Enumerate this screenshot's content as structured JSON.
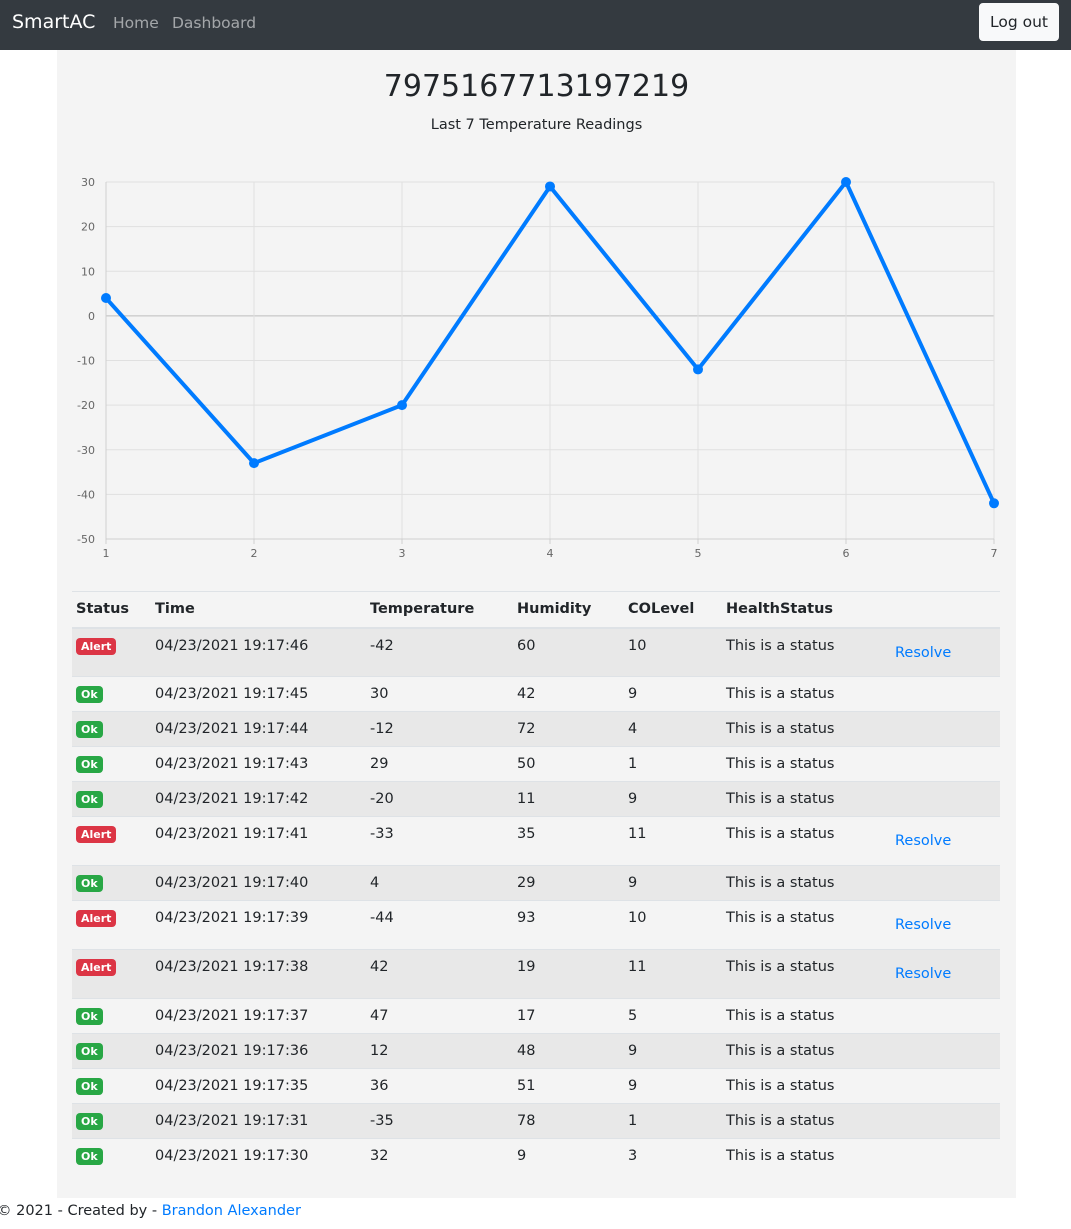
{
  "navbar": {
    "brand": "SmartAC",
    "links": [
      "Home",
      "Dashboard"
    ],
    "logout_label": "Log out"
  },
  "device": {
    "id": "7975167713197219",
    "chart_subtitle": "Last 7 Temperature Readings"
  },
  "chart_data": {
    "type": "line",
    "x": [
      1,
      2,
      3,
      4,
      5,
      6,
      7
    ],
    "series": [
      {
        "values": [
          4,
          -33,
          -20,
          29,
          -12,
          30,
          -42
        ]
      }
    ],
    "title": "",
    "xlabel": "",
    "ylabel": "",
    "ylim": [
      -50,
      30
    ],
    "yticks": [
      30,
      20,
      10,
      0,
      -10,
      -20,
      -30,
      -40,
      -50
    ],
    "grid": true,
    "legend": "none",
    "line_color": "#007bff"
  },
  "table": {
    "headers": [
      "Status",
      "Time",
      "Temperature",
      "Humidity",
      "COLevel",
      "HealthStatus"
    ],
    "resolve_label": "Resolve",
    "rows": [
      {
        "status": "Alert",
        "time": "04/23/2021 19:17:46",
        "temperature": "-42",
        "humidity": "60",
        "co": "10",
        "health": "This is a status"
      },
      {
        "status": "Ok",
        "time": "04/23/2021 19:17:45",
        "temperature": "30",
        "humidity": "42",
        "co": "9",
        "health": "This is a status"
      },
      {
        "status": "Ok",
        "time": "04/23/2021 19:17:44",
        "temperature": "-12",
        "humidity": "72",
        "co": "4",
        "health": "This is a status"
      },
      {
        "status": "Ok",
        "time": "04/23/2021 19:17:43",
        "temperature": "29",
        "humidity": "50",
        "co": "1",
        "health": "This is a status"
      },
      {
        "status": "Ok",
        "time": "04/23/2021 19:17:42",
        "temperature": "-20",
        "humidity": "11",
        "co": "9",
        "health": "This is a status"
      },
      {
        "status": "Alert",
        "time": "04/23/2021 19:17:41",
        "temperature": "-33",
        "humidity": "35",
        "co": "11",
        "health": "This is a status"
      },
      {
        "status": "Ok",
        "time": "04/23/2021 19:17:40",
        "temperature": "4",
        "humidity": "29",
        "co": "9",
        "health": "This is a status"
      },
      {
        "status": "Alert",
        "time": "04/23/2021 19:17:39",
        "temperature": "-44",
        "humidity": "93",
        "co": "10",
        "health": "This is a status"
      },
      {
        "status": "Alert",
        "time": "04/23/2021 19:17:38",
        "temperature": "42",
        "humidity": "19",
        "co": "11",
        "health": "This is a status"
      },
      {
        "status": "Ok",
        "time": "04/23/2021 19:17:37",
        "temperature": "47",
        "humidity": "17",
        "co": "5",
        "health": "This is a status"
      },
      {
        "status": "Ok",
        "time": "04/23/2021 19:17:36",
        "temperature": "12",
        "humidity": "48",
        "co": "9",
        "health": "This is a status"
      },
      {
        "status": "Ok",
        "time": "04/23/2021 19:17:35",
        "temperature": "36",
        "humidity": "51",
        "co": "9",
        "health": "This is a status"
      },
      {
        "status": "Ok",
        "time": "04/23/2021 19:17:31",
        "temperature": "-35",
        "humidity": "78",
        "co": "1",
        "health": "This is a status"
      },
      {
        "status": "Ok",
        "time": "04/23/2021 19:17:30",
        "temperature": "32",
        "humidity": "9",
        "co": "3",
        "health": "This is a status"
      }
    ]
  },
  "footer": {
    "text": "© 2021 - Created by - ",
    "author": "Brandon Alexander"
  },
  "colors": {
    "navbar": "#343a40",
    "content_bg": "#f4f4f4",
    "accent": "#007bff",
    "ok_badge": "#28a745",
    "alert_badge": "#dc3545"
  }
}
